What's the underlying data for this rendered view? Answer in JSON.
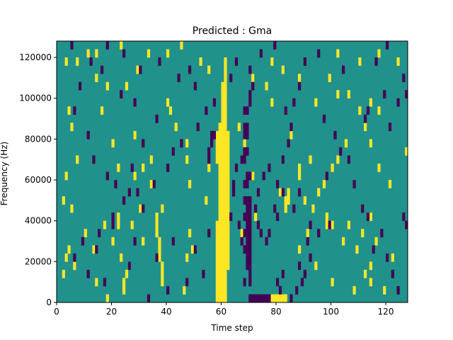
{
  "chart_data": {
    "type": "heatmap",
    "title": "Predicted : Gma",
    "xlabel": "Time step",
    "ylabel": "Frequency (Hz)",
    "xlim": [
      0,
      128
    ],
    "ylim": [
      0,
      128000
    ],
    "xticks": [
      0,
      20,
      40,
      60,
      80,
      100,
      120
    ],
    "xtick_labels": [
      "0",
      "20",
      "40",
      "60",
      "80",
      "100",
      "120"
    ],
    "yticks": [
      0,
      20000,
      40000,
      60000,
      80000,
      100000,
      120000
    ],
    "ytick_labels": [
      "0",
      "20000",
      "40000",
      "60000",
      "80000",
      "100000",
      "120000"
    ],
    "grid": false,
    "legend": "none",
    "colormap": "viridis",
    "value_range": [
      -1,
      1
    ],
    "background_value": 0,
    "colors": {
      "low": "#440154",
      "mid": "#21918c",
      "high": "#fde725"
    },
    "cell_height_hz": 4000,
    "high_cells": [
      [
        58,
        2000
      ],
      [
        59,
        2000
      ],
      [
        60,
        2000
      ],
      [
        61,
        2000
      ],
      [
        58,
        6000
      ],
      [
        59,
        6000
      ],
      [
        60,
        6000
      ],
      [
        61,
        6000
      ],
      [
        58,
        10000
      ],
      [
        59,
        10000
      ],
      [
        60,
        10000
      ],
      [
        61,
        10000
      ],
      [
        58,
        14000
      ],
      [
        59,
        14000
      ],
      [
        60,
        14000
      ],
      [
        61,
        14000
      ],
      [
        58,
        18000
      ],
      [
        59,
        18000
      ],
      [
        60,
        18000
      ],
      [
        61,
        18000
      ],
      [
        62,
        18000
      ],
      [
        58,
        22000
      ],
      [
        59,
        22000
      ],
      [
        60,
        22000
      ],
      [
        61,
        22000
      ],
      [
        62,
        22000
      ],
      [
        58,
        26000
      ],
      [
        59,
        26000
      ],
      [
        60,
        26000
      ],
      [
        61,
        26000
      ],
      [
        62,
        26000
      ],
      [
        58,
        30000
      ],
      [
        59,
        30000
      ],
      [
        60,
        30000
      ],
      [
        61,
        30000
      ],
      [
        62,
        30000
      ],
      [
        58,
        34000
      ],
      [
        59,
        34000
      ],
      [
        60,
        34000
      ],
      [
        61,
        34000
      ],
      [
        62,
        34000
      ],
      [
        58,
        38000
      ],
      [
        59,
        38000
      ],
      [
        60,
        38000
      ],
      [
        61,
        38000
      ],
      [
        62,
        38000
      ],
      [
        59,
        42000
      ],
      [
        60,
        42000
      ],
      [
        61,
        42000
      ],
      [
        62,
        42000
      ],
      [
        59,
        46000
      ],
      [
        60,
        46000
      ],
      [
        61,
        46000
      ],
      [
        62,
        46000
      ],
      [
        59,
        50000
      ],
      [
        60,
        50000
      ],
      [
        61,
        50000
      ],
      [
        62,
        50000
      ],
      [
        59,
        54000
      ],
      [
        60,
        54000
      ],
      [
        61,
        54000
      ],
      [
        62,
        54000
      ],
      [
        59,
        58000
      ],
      [
        60,
        58000
      ],
      [
        61,
        58000
      ],
      [
        62,
        58000
      ],
      [
        59,
        62000
      ],
      [
        60,
        62000
      ],
      [
        61,
        62000
      ],
      [
        62,
        62000
      ],
      [
        59,
        66000
      ],
      [
        60,
        66000
      ],
      [
        61,
        66000
      ],
      [
        62,
        66000
      ],
      [
        58,
        70000
      ],
      [
        59,
        70000
      ],
      [
        60,
        70000
      ],
      [
        61,
        70000
      ],
      [
        62,
        70000
      ],
      [
        58,
        74000
      ],
      [
        59,
        74000
      ],
      [
        60,
        74000
      ],
      [
        61,
        74000
      ],
      [
        62,
        74000
      ],
      [
        58,
        78000
      ],
      [
        59,
        78000
      ],
      [
        60,
        78000
      ],
      [
        61,
        78000
      ],
      [
        62,
        78000
      ],
      [
        58,
        82000
      ],
      [
        59,
        82000
      ],
      [
        60,
        82000
      ],
      [
        61,
        82000
      ],
      [
        62,
        82000
      ],
      [
        59,
        86000
      ],
      [
        60,
        86000
      ],
      [
        61,
        86000
      ],
      [
        60,
        90000
      ],
      [
        61,
        90000
      ],
      [
        60,
        94000
      ],
      [
        61,
        94000
      ],
      [
        60,
        98000
      ],
      [
        61,
        98000
      ],
      [
        60,
        102000
      ],
      [
        61,
        102000
      ],
      [
        60,
        106000
      ],
      [
        61,
        106000
      ],
      [
        61,
        110000
      ],
      [
        61,
        114000
      ],
      [
        61,
        118000
      ],
      [
        78,
        2000
      ],
      [
        79,
        2000
      ],
      [
        80,
        2000
      ],
      [
        81,
        2000
      ],
      [
        82,
        2000
      ],
      [
        83,
        2000
      ],
      [
        38,
        10000
      ],
      [
        38,
        14000
      ],
      [
        38,
        18000
      ],
      [
        37,
        22000
      ],
      [
        37,
        26000
      ],
      [
        37,
        30000
      ],
      [
        36,
        34000
      ],
      [
        36,
        38000
      ],
      [
        36,
        42000
      ],
      [
        24,
        6000
      ],
      [
        24,
        10000
      ],
      [
        25,
        14000
      ],
      [
        26,
        18000
      ],
      [
        22,
        42000
      ],
      [
        22,
        38000
      ],
      [
        81,
        54000
      ],
      [
        84,
        54000
      ],
      [
        83,
        50000
      ],
      [
        84,
        50000
      ],
      [
        98,
        38000
      ],
      [
        100,
        38000
      ],
      [
        106,
        38000
      ],
      [
        116,
        30000
      ],
      [
        111,
        34000
      ],
      [
        114,
        18000
      ],
      [
        100,
        10000
      ],
      [
        114,
        10000
      ],
      [
        108,
        6000
      ],
      [
        97,
        58000
      ],
      [
        102,
        70000
      ],
      [
        105,
        78000
      ],
      [
        114,
        78000
      ],
      [
        112,
        86000
      ],
      [
        117,
        66000
      ],
      [
        121,
        58000
      ],
      [
        110,
        94000
      ],
      [
        114,
        98000
      ],
      [
        117,
        94000
      ],
      [
        102,
        102000
      ],
      [
        94,
        98000
      ],
      [
        106,
        102000
      ],
      [
        88,
        110000
      ],
      [
        82,
        114000
      ],
      [
        78,
        118000
      ],
      [
        55,
        114000
      ],
      [
        52,
        118000
      ],
      [
        45,
        126000
      ],
      [
        40,
        122000
      ],
      [
        23,
        126000
      ],
      [
        11,
        122000
      ],
      [
        3,
        118000
      ],
      [
        4,
        94000
      ],
      [
        5,
        86000
      ],
      [
        7,
        70000
      ],
      [
        3,
        62000
      ],
      [
        2,
        50000
      ],
      [
        5,
        46000
      ],
      [
        3,
        22000
      ],
      [
        4,
        26000
      ],
      [
        10,
        34000
      ],
      [
        17,
        38000
      ],
      [
        30,
        46000
      ],
      [
        28,
        62000
      ],
      [
        31,
        66000
      ],
      [
        34,
        70000
      ],
      [
        47,
        70000
      ],
      [
        48,
        58000
      ],
      [
        43,
        86000
      ],
      [
        41,
        94000
      ],
      [
        28,
        82000
      ],
      [
        34,
        58000
      ],
      [
        22,
        66000
      ],
      [
        20,
        78000
      ],
      [
        16,
        94000
      ],
      [
        18,
        106000
      ],
      [
        7,
        118000
      ],
      [
        14,
        110000
      ],
      [
        25,
        106000
      ],
      [
        14,
        122000
      ],
      [
        29,
        114000
      ],
      [
        33,
        122000
      ],
      [
        48,
        34000
      ],
      [
        49,
        26000
      ],
      [
        47,
        22000
      ],
      [
        46,
        6000
      ],
      [
        27,
        38000
      ],
      [
        20,
        30000
      ],
      [
        13,
        26000
      ],
      [
        2,
        14000
      ],
      [
        6,
        18000
      ],
      [
        18,
        2000
      ],
      [
        14,
        10000
      ],
      [
        23,
        22000
      ],
      [
        31,
        30000
      ],
      [
        38,
        46000
      ],
      [
        54,
        50000
      ],
      [
        55,
        66000
      ],
      [
        47,
        78000
      ],
      [
        40,
        98000
      ],
      [
        88,
        26000
      ],
      [
        91,
        34000
      ],
      [
        93,
        46000
      ],
      [
        95,
        54000
      ],
      [
        88,
        62000
      ],
      [
        92,
        70000
      ],
      [
        85,
        82000
      ],
      [
        94,
        18000
      ],
      [
        98,
        42000
      ],
      [
        104,
        30000
      ],
      [
        109,
        26000
      ],
      [
        112,
        14000
      ],
      [
        114,
        42000
      ],
      [
        119,
        6000
      ],
      [
        122,
        22000
      ],
      [
        127,
        74000
      ],
      [
        124,
        118000
      ],
      [
        66,
        86000
      ],
      [
        71,
        110000
      ],
      [
        76,
        106000
      ],
      [
        72,
        42000
      ],
      [
        88,
        66000
      ],
      [
        67,
        34000
      ],
      [
        78,
        98000
      ],
      [
        90,
        50000
      ],
      [
        83,
        46000
      ],
      [
        117,
        122000
      ],
      [
        110,
        118000
      ],
      [
        102,
        122000
      ],
      [
        100,
        66000
      ],
      [
        99,
        110000
      ],
      [
        71,
        62000
      ],
      [
        68,
        78000
      ]
    ],
    "low_cells": [
      [
        70,
        2000
      ],
      [
        71,
        2000
      ],
      [
        72,
        2000
      ],
      [
        73,
        2000
      ],
      [
        74,
        2000
      ],
      [
        75,
        2000
      ],
      [
        76,
        2000
      ],
      [
        77,
        2000
      ],
      [
        68,
        10000
      ],
      [
        70,
        10000
      ],
      [
        70,
        14000
      ],
      [
        69,
        18000
      ],
      [
        70,
        18000
      ],
      [
        69,
        22000
      ],
      [
        70,
        22000
      ],
      [
        68,
        26000
      ],
      [
        69,
        26000
      ],
      [
        70,
        26000
      ],
      [
        69,
        30000
      ],
      [
        70,
        30000
      ],
      [
        68,
        34000
      ],
      [
        69,
        34000
      ],
      [
        70,
        34000
      ],
      [
        69,
        38000
      ],
      [
        70,
        38000
      ],
      [
        68,
        42000
      ],
      [
        69,
        42000
      ],
      [
        70,
        42000
      ],
      [
        69,
        46000
      ],
      [
        70,
        46000
      ],
      [
        68,
        50000
      ],
      [
        69,
        50000
      ],
      [
        70,
        50000
      ],
      [
        68,
        58000
      ],
      [
        69,
        58000
      ],
      [
        69,
        62000
      ],
      [
        70,
        62000
      ],
      [
        67,
        70000
      ],
      [
        68,
        70000
      ],
      [
        68,
        74000
      ],
      [
        69,
        74000
      ],
      [
        68,
        82000
      ],
      [
        69,
        82000
      ],
      [
        68,
        86000
      ],
      [
        69,
        86000
      ],
      [
        68,
        94000
      ],
      [
        69,
        94000
      ],
      [
        70,
        98000
      ],
      [
        70,
        102000
      ],
      [
        71,
        106000
      ],
      [
        70,
        114000
      ],
      [
        56,
        82000
      ],
      [
        57,
        82000
      ],
      [
        56,
        78000
      ],
      [
        55,
        74000
      ],
      [
        55,
        70000
      ],
      [
        64,
        54000
      ],
      [
        64,
        58000
      ],
      [
        65,
        66000
      ],
      [
        63,
        42000
      ],
      [
        66,
        38000
      ],
      [
        67,
        30000
      ],
      [
        80,
        10000
      ],
      [
        81,
        6000
      ],
      [
        82,
        14000
      ],
      [
        85,
        2000
      ],
      [
        87,
        6000
      ],
      [
        73,
        38000
      ],
      [
        74,
        34000
      ],
      [
        77,
        34000
      ],
      [
        76,
        30000
      ],
      [
        80,
        42000
      ],
      [
        79,
        46000
      ],
      [
        72,
        46000
      ],
      [
        73,
        54000
      ],
      [
        75,
        62000
      ],
      [
        77,
        66000
      ],
      [
        80,
        58000
      ],
      [
        82,
        54000
      ],
      [
        89,
        10000
      ],
      [
        90,
        14000
      ],
      [
        88,
        18000
      ],
      [
        92,
        22000
      ],
      [
        91,
        30000
      ],
      [
        95,
        34000
      ],
      [
        99,
        38000
      ],
      [
        82,
        70000
      ],
      [
        84,
        78000
      ],
      [
        85,
        86000
      ],
      [
        83,
        94000
      ],
      [
        86,
        98000
      ],
      [
        88,
        106000
      ],
      [
        90,
        118000
      ],
      [
        97,
        90000
      ],
      [
        101,
        82000
      ],
      [
        103,
        74000
      ],
      [
        106,
        70000
      ],
      [
        108,
        58000
      ],
      [
        111,
        46000
      ],
      [
        113,
        42000
      ],
      [
        118,
        34000
      ],
      [
        115,
        26000
      ],
      [
        120,
        22000
      ],
      [
        122,
        14000
      ],
      [
        124,
        6000
      ],
      [
        126,
        42000
      ],
      [
        127,
        38000
      ],
      [
        121,
        86000
      ],
      [
        119,
        102000
      ],
      [
        126,
        110000
      ],
      [
        113,
        94000
      ],
      [
        112,
        90000
      ],
      [
        98,
        62000
      ],
      [
        88,
        54000
      ],
      [
        86,
        46000
      ],
      [
        92,
        38000
      ],
      [
        33,
        2000
      ],
      [
        17,
        10000
      ],
      [
        11,
        14000
      ],
      [
        6,
        22000
      ],
      [
        9,
        30000
      ],
      [
        15,
        34000
      ],
      [
        20,
        42000
      ],
      [
        24,
        50000
      ],
      [
        29,
        54000
      ],
      [
        35,
        58000
      ],
      [
        40,
        66000
      ],
      [
        42,
        74000
      ],
      [
        45,
        78000
      ],
      [
        51,
        86000
      ],
      [
        54,
        94000
      ],
      [
        57,
        98000
      ],
      [
        50,
        106000
      ],
      [
        48,
        114000
      ],
      [
        44,
        110000
      ],
      [
        37,
        118000
      ],
      [
        30,
        114000
      ],
      [
        24,
        122000
      ],
      [
        18,
        126000
      ],
      [
        12,
        118000
      ],
      [
        8,
        106000
      ],
      [
        6,
        94000
      ],
      [
        11,
        82000
      ],
      [
        13,
        70000
      ],
      [
        18,
        62000
      ],
      [
        21,
        58000
      ],
      [
        26,
        54000
      ],
      [
        31,
        46000
      ],
      [
        42,
        30000
      ],
      [
        53,
        14000
      ],
      [
        47,
        10000
      ],
      [
        40,
        6000
      ],
      [
        26,
        18000
      ],
      [
        14,
        26000
      ],
      [
        20,
        38000
      ],
      [
        28,
        30000
      ],
      [
        36,
        22000
      ],
      [
        50,
        26000
      ],
      [
        55,
        34000
      ],
      [
        27,
        66000
      ],
      [
        31,
        78000
      ],
      [
        36,
        90000
      ],
      [
        28,
        98000
      ],
      [
        23,
        102000
      ],
      [
        16,
        114000
      ],
      [
        5,
        126000
      ],
      [
        63,
        110000
      ],
      [
        65,
        118000
      ],
      [
        74,
        122000
      ],
      [
        79,
        126000
      ],
      [
        95,
        122000
      ],
      [
        104,
        114000
      ],
      [
        116,
        118000
      ],
      [
        120,
        126000
      ],
      [
        124,
        98000
      ],
      [
        127,
        102000
      ]
    ]
  }
}
